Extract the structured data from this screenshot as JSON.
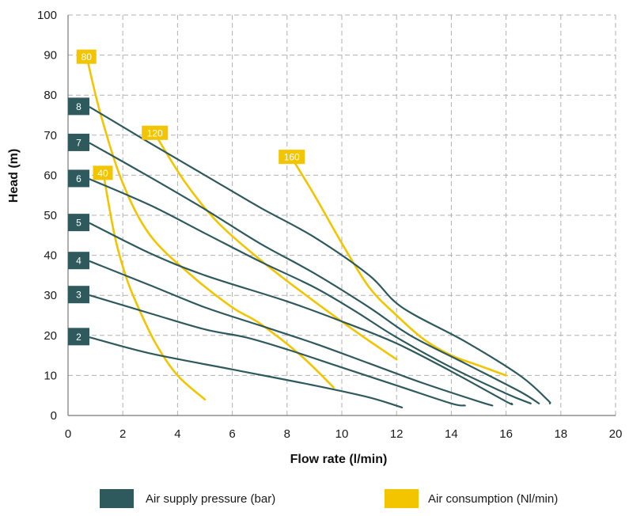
{
  "chart_data": {
    "type": "line",
    "title": "",
    "xlabel": "Flow rate (l/min)",
    "ylabel": "Head (m)",
    "xlim": [
      0,
      20
    ],
    "ylim": [
      0,
      100
    ],
    "xticks": [
      0,
      2,
      4,
      6,
      8,
      10,
      12,
      14,
      16,
      18,
      20
    ],
    "yticks": [
      0,
      10,
      20,
      30,
      40,
      50,
      60,
      70,
      80,
      90,
      100
    ],
    "grid": true,
    "colors": {
      "pressure": "#2e5a5e",
      "consumption": "#f2c500"
    },
    "series": [
      {
        "group": "pressure",
        "name": "2",
        "label": "2",
        "points": [
          [
            0.8,
            19.5
          ],
          [
            3,
            15.5
          ],
          [
            6,
            11.5
          ],
          [
            9,
            7.5
          ],
          [
            11,
            4.5
          ],
          [
            12.2,
            2
          ]
        ]
      },
      {
        "group": "pressure",
        "name": "3",
        "label": "3",
        "points": [
          [
            0.8,
            30
          ],
          [
            3,
            25.5
          ],
          [
            5,
            21.5
          ],
          [
            6.5,
            19.5
          ],
          [
            8,
            16.5
          ],
          [
            10,
            12
          ],
          [
            12,
            7.5
          ],
          [
            14,
            3
          ],
          [
            14.5,
            2.5
          ]
        ]
      },
      {
        "group": "pressure",
        "name": "4",
        "label": "4",
        "points": [
          [
            0.8,
            38.5
          ],
          [
            3,
            32.5
          ],
          [
            5,
            27
          ],
          [
            7,
            22.5
          ],
          [
            9,
            18
          ],
          [
            11,
            13
          ],
          [
            13,
            8
          ],
          [
            15,
            3.5
          ],
          [
            15.5,
            2.5
          ]
        ]
      },
      {
        "group": "pressure",
        "name": "5",
        "label": "5",
        "points": [
          [
            0.8,
            48
          ],
          [
            3,
            40.5
          ],
          [
            5,
            35
          ],
          [
            8,
            28.5
          ],
          [
            10,
            23.5
          ],
          [
            12,
            18
          ],
          [
            14,
            11
          ],
          [
            16,
            3.5
          ],
          [
            16.2,
            3
          ]
        ]
      },
      {
        "group": "pressure",
        "name": "6",
        "label": "6",
        "points": [
          [
            0.8,
            59
          ],
          [
            3,
            52.5
          ],
          [
            5,
            45.5
          ],
          [
            7,
            38.5
          ],
          [
            9,
            32
          ],
          [
            10.5,
            26
          ],
          [
            12,
            19.5
          ],
          [
            14,
            12
          ],
          [
            16,
            5.5
          ],
          [
            16.9,
            3
          ]
        ]
      },
      {
        "group": "pressure",
        "name": "7",
        "label": "7",
        "points": [
          [
            0.8,
            68
          ],
          [
            3,
            59.5
          ],
          [
            5,
            51.5
          ],
          [
            7,
            43
          ],
          [
            9,
            35.5
          ],
          [
            11,
            27
          ],
          [
            12.5,
            20
          ],
          [
            14.5,
            13
          ],
          [
            16.5,
            6
          ],
          [
            17.2,
            3
          ]
        ]
      },
      {
        "group": "pressure",
        "name": "8",
        "label": "8",
        "points": [
          [
            0.8,
            77
          ],
          [
            3,
            68
          ],
          [
            5,
            60
          ],
          [
            7,
            52
          ],
          [
            9,
            44.5
          ],
          [
            11,
            35
          ],
          [
            12.2,
            27
          ],
          [
            14.5,
            18.5
          ],
          [
            16.5,
            10
          ],
          [
            17.5,
            4
          ],
          [
            17.6,
            3
          ]
        ]
      },
      {
        "group": "consumption",
        "name": "40",
        "label": "40",
        "points": [
          [
            1.3,
            60
          ],
          [
            1.7,
            45
          ],
          [
            2.1,
            35
          ],
          [
            2.5,
            28
          ],
          [
            3.2,
            18
          ],
          [
            4,
            10
          ],
          [
            5,
            4
          ]
        ]
      },
      {
        "group": "consumption",
        "name": "80",
        "label": "80",
        "points": [
          [
            0.7,
            89
          ],
          [
            1.2,
            75
          ],
          [
            2,
            58
          ],
          [
            3,
            45
          ],
          [
            4.5,
            35
          ],
          [
            6,
            27
          ],
          [
            7,
            23
          ],
          [
            8.5,
            15
          ],
          [
            9.7,
            7
          ]
        ]
      },
      {
        "group": "consumption",
        "name": "120",
        "label": "120",
        "points": [
          [
            3.2,
            70
          ],
          [
            4.3,
            58
          ],
          [
            5.5,
            48
          ],
          [
            7,
            39
          ],
          [
            8.5,
            31
          ],
          [
            10.5,
            21
          ],
          [
            12,
            14
          ]
        ]
      },
      {
        "group": "consumption",
        "name": "160",
        "label": "160",
        "points": [
          [
            8.2,
            64
          ],
          [
            9,
            55
          ],
          [
            10,
            43
          ],
          [
            11,
            32
          ],
          [
            12,
            25
          ],
          [
            13,
            19
          ],
          [
            14,
            15
          ],
          [
            15,
            12.5
          ],
          [
            16,
            10
          ]
        ]
      }
    ],
    "legend": [
      {
        "group": "pressure",
        "label": "Air supply pressure (bar)"
      },
      {
        "group": "consumption",
        "label": "Air consumption (Nl/min)"
      }
    ]
  }
}
